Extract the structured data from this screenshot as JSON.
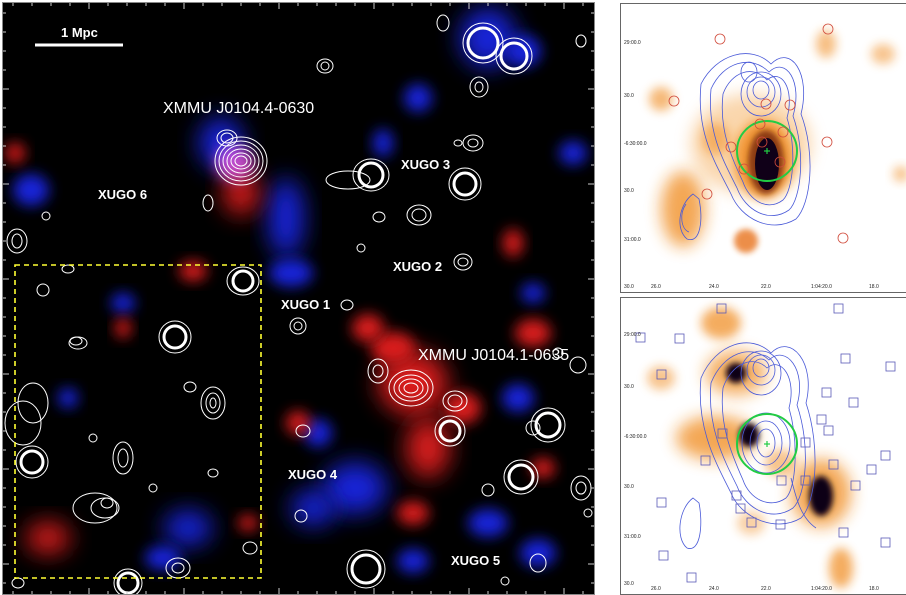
{
  "main_panel": {
    "scale_bar_label": "1 Mpc",
    "clusters": [
      "XMMU J0104.4-0630",
      "XMMU J0104.1-0635"
    ],
    "candidates": [
      "XUGO 1",
      "XUGO 2",
      "XUGO 3",
      "XUGO 4",
      "XUGO 5",
      "XUGO 6"
    ],
    "colors": {
      "background": "#000000",
      "contours": "#ffffff",
      "blue_emission": "#1a2cff",
      "red_emission": "#ff2020",
      "highlight_box": "#ffff33"
    }
  },
  "top_panel": {
    "dec_ticks": [
      "29:00.0",
      "30.0",
      "-6:30:00.0",
      "30.0",
      "31:00.0",
      "30.0"
    ],
    "ra_ticks": [
      "26.0",
      "24.0",
      "22.0",
      "1:04:20.0",
      "18.0"
    ],
    "colors": {
      "map": "#f08a1a",
      "contours": "#4a5ad8",
      "aperture": "#22cc44",
      "markers": "#d04a3a"
    }
  },
  "bottom_panel": {
    "dec_ticks": [
      "29:00.0",
      "30.0",
      "-6:30:00.0",
      "30.0",
      "31:00.0",
      "30.0"
    ],
    "ra_ticks": [
      "26.0",
      "24.0",
      "22.0",
      "1:04:20.0",
      "18.0"
    ],
    "colors": {
      "map": "#f08a1a",
      "contours": "#4a5ad8",
      "aperture": "#22cc44",
      "markers": "#5a5ab8"
    }
  }
}
